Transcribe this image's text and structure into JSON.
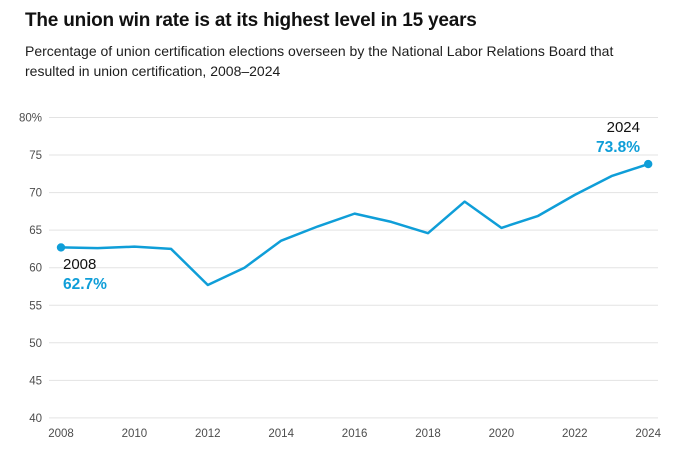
{
  "header": {
    "title": "The union win rate is at its highest level in 15 years",
    "subtitle": "Percentage of union certification elections overseen by the National Labor Relations Board that resulted in union certification, 2008–2024"
  },
  "colors": {
    "accent_blue": "#0f9ed8",
    "gridline": "#e3e3e3",
    "axis_text": "#4d4d4d",
    "title_text": "#111111"
  },
  "chart_data": {
    "type": "line",
    "title": "The union win rate is at its highest level in 15 years",
    "subtitle": "Percentage of union certification elections overseen by the National Labor Relations Board that resulted in union certification, 2008–2024",
    "x": [
      2008,
      2009,
      2010,
      2011,
      2012,
      2013,
      2014,
      2015,
      2016,
      2017,
      2018,
      2019,
      2020,
      2021,
      2022,
      2023,
      2024
    ],
    "values": [
      62.7,
      62.6,
      62.8,
      62.5,
      57.7,
      60.0,
      63.6,
      65.5,
      67.2,
      66.1,
      64.6,
      68.8,
      65.3,
      66.9,
      69.7,
      72.2,
      73.8
    ],
    "series_name": "Union win rate",
    "line_color": "#0f9ed8",
    "ylim": [
      40,
      80
    ],
    "ytick_step": 5,
    "ytick_top_suffix": "%",
    "xticks": [
      2008,
      2010,
      2012,
      2014,
      2016,
      2018,
      2020,
      2022,
      2024
    ],
    "grid": "horizontal",
    "markers": "endpoints-only",
    "annotations": [
      {
        "year": "2008",
        "value": "62.7%"
      },
      {
        "year": "2024",
        "value": "73.8%"
      }
    ]
  }
}
